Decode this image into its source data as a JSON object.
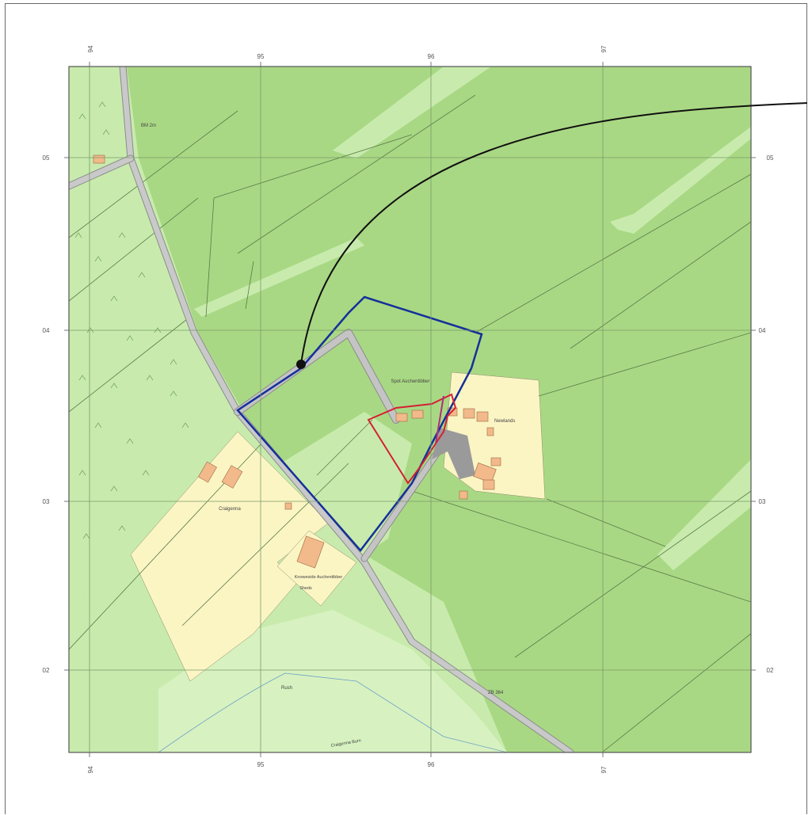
{
  "map": {
    "grid_labels": {
      "top": [
        "94",
        "95",
        "96",
        "97"
      ],
      "bottom": [
        "94",
        "95",
        "96",
        "97"
      ],
      "left": [
        "05",
        "04",
        "03",
        "02"
      ],
      "right": [
        "05",
        "04",
        "03",
        "02"
      ]
    },
    "place_labels": {
      "spot_label": "BM 2m",
      "farm_upper": "Spot Auchentibber",
      "farm_right": "Newlands",
      "cottage_left": "Craigenna",
      "cottage_centre": "Knoweside Auchentibber",
      "cottage_centre_sub": "Sheds",
      "lower_label": "Rush",
      "road_label": "ZB 364",
      "track_label": "Craigenna Burn"
    },
    "colors": {
      "woodland_dark": "#a9d884",
      "field_light": "#c8ebad",
      "field_lighter": "#d7f2c0",
      "settlement": "#fbf5c4",
      "road": "#c4c4c4",
      "building": "#f2b98a",
      "boundary_blue": "#15309a",
      "boundary_red": "#d41f33"
    }
  }
}
